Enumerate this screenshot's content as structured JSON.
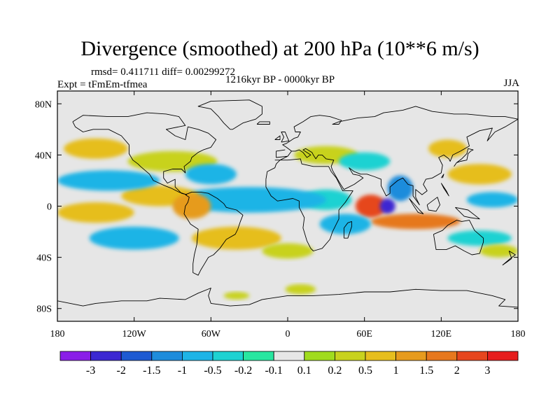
{
  "header": {
    "title": "Divergence (smoothed) at 200 hPa (10**6 m/s)",
    "stats": "rmsd= 0.411711 diff= 0.00299272",
    "expt": "Expt = tFmEm-tfmea",
    "period": "1216kyr BP - 0000kyr BP",
    "season": "JJA"
  },
  "chart_data": {
    "type": "heatmap",
    "title": "Divergence (smoothed) at 200 hPa (10**6 m/s)",
    "projection": "cylindrical equidistant",
    "xlim": [
      -180,
      180
    ],
    "ylim": [
      -90,
      90
    ],
    "x_ticks": [
      {
        "value": -180,
        "label": "180"
      },
      {
        "value": -120,
        "label": "120W"
      },
      {
        "value": -60,
        "label": "60W"
      },
      {
        "value": 0,
        "label": "0"
      },
      {
        "value": 60,
        "label": "60E"
      },
      {
        "value": 120,
        "label": "120E"
      },
      {
        "value": 180,
        "label": "180"
      }
    ],
    "y_ticks": [
      {
        "value": 80,
        "label": "80N"
      },
      {
        "value": 40,
        "label": "40N"
      },
      {
        "value": 0,
        "label": "0"
      },
      {
        "value": -40,
        "label": "40S"
      },
      {
        "value": -80,
        "label": "80S"
      }
    ],
    "colorbar": {
      "colors": [
        "#8a1ee8",
        "#3c28d2",
        "#1e5ad2",
        "#1e8cdc",
        "#1eb4e6",
        "#1ed2d2",
        "#28e6a0",
        "#e6e6e6",
        "#a0dc1e",
        "#c8d21e",
        "#e6be1e",
        "#e69b1e",
        "#e6781e",
        "#e6461e",
        "#e61e1e"
      ],
      "boundaries": [
        "-3",
        "-2",
        "-1.5",
        "-1",
        "-0.5",
        "-0.2",
        "-0.1",
        "0.1",
        "0.2",
        "0.5",
        "1",
        "1.5",
        "2",
        "3"
      ]
    },
    "anomalies": [
      {
        "lon": 65,
        "lat": 0,
        "rx": 12,
        "ry": 9,
        "value": 2.5
      },
      {
        "lon": 78,
        "lat": 0,
        "rx": 6,
        "ry": 6,
        "value": -2.5
      },
      {
        "lon": 88,
        "lat": 14,
        "rx": 10,
        "ry": 10,
        "value": -1.2
      },
      {
        "lon": 100,
        "lat": -12,
        "rx": 35,
        "ry": 6,
        "value": 1.5
      },
      {
        "lon": 45,
        "lat": -14,
        "rx": 20,
        "ry": 8,
        "value": -0.8
      },
      {
        "lon": 30,
        "lat": 5,
        "rx": 20,
        "ry": 8,
        "value": -0.5
      },
      {
        "lon": -30,
        "lat": 5,
        "rx": 60,
        "ry": 10,
        "value": -0.6
      },
      {
        "lon": -100,
        "lat": 8,
        "rx": 30,
        "ry": 8,
        "value": 0.5
      },
      {
        "lon": -75,
        "lat": 0,
        "rx": 15,
        "ry": 10,
        "value": 1.2
      },
      {
        "lon": -140,
        "lat": 20,
        "rx": 40,
        "ry": 8,
        "value": -0.8
      },
      {
        "lon": -150,
        "lat": -5,
        "rx": 30,
        "ry": 8,
        "value": 0.6
      },
      {
        "lon": -120,
        "lat": -25,
        "rx": 35,
        "ry": 9,
        "value": -0.7
      },
      {
        "lon": -40,
        "lat": -25,
        "rx": 35,
        "ry": 9,
        "value": 0.5
      },
      {
        "lon": 0,
        "lat": -35,
        "rx": 20,
        "ry": 6,
        "value": 0.3
      },
      {
        "lon": -150,
        "lat": 45,
        "rx": 25,
        "ry": 8,
        "value": 0.5
      },
      {
        "lon": -90,
        "lat": 35,
        "rx": 35,
        "ry": 8,
        "value": 0.4
      },
      {
        "lon": -60,
        "lat": 25,
        "rx": 20,
        "ry": 8,
        "value": -0.6
      },
      {
        "lon": 30,
        "lat": 40,
        "rx": 25,
        "ry": 7,
        "value": 0.4
      },
      {
        "lon": 60,
        "lat": 35,
        "rx": 20,
        "ry": 7,
        "value": -0.5
      },
      {
        "lon": 150,
        "lat": 25,
        "rx": 25,
        "ry": 8,
        "value": 0.6
      },
      {
        "lon": 160,
        "lat": 5,
        "rx": 20,
        "ry": 6,
        "value": -0.8
      },
      {
        "lon": 150,
        "lat": -25,
        "rx": 25,
        "ry": 6,
        "value": -0.5
      },
      {
        "lon": 165,
        "lat": -35,
        "rx": 15,
        "ry": 5,
        "value": 0.4
      },
      {
        "lon": 125,
        "lat": 45,
        "rx": 15,
        "ry": 7,
        "value": 0.5
      },
      {
        "lon": 10,
        "lat": -65,
        "rx": 12,
        "ry": 4,
        "value": 0.4
      },
      {
        "lon": -40,
        "lat": -70,
        "rx": 10,
        "ry": 3,
        "value": 0.3
      }
    ]
  }
}
